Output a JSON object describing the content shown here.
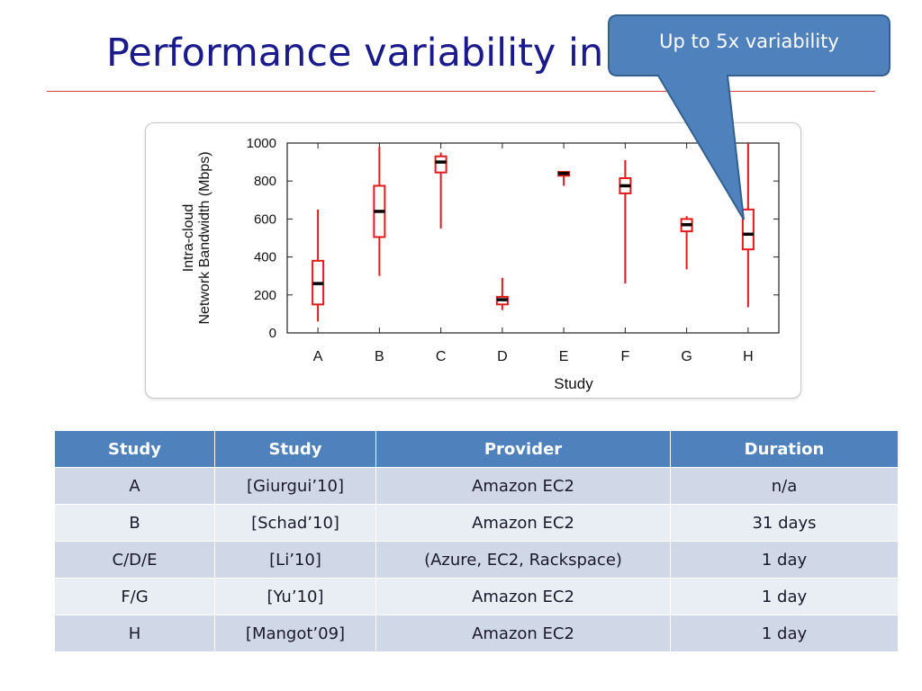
{
  "slide": {
    "title": "Performance variability in the cloud",
    "callout": "Up to 5x variability"
  },
  "colors": {
    "title": "#1a1a8c",
    "rule": "#d94040",
    "box": "#e31a1c",
    "callout_fill": "#4f81bd",
    "table_header": "#4f81bd",
    "row_odd": "#d0d8e8",
    "row_even": "#e9edf4"
  },
  "chart_data": {
    "type": "box",
    "xlabel": "Study",
    "ylabel_lines": [
      "Intra-cloud",
      "Network Bandwidth (Mbps)"
    ],
    "ylim": [
      0,
      1000
    ],
    "yticks": [
      0,
      200,
      400,
      600,
      800,
      1000
    ],
    "categories": [
      "A",
      "B",
      "C",
      "D",
      "E",
      "F",
      "G",
      "H"
    ],
    "boxes": [
      {
        "study": "A",
        "min": 60,
        "q1": 150,
        "median": 260,
        "q3": 380,
        "max": 650
      },
      {
        "study": "B",
        "min": 300,
        "q1": 505,
        "median": 640,
        "q3": 775,
        "max": 980
      },
      {
        "study": "C",
        "min": 550,
        "q1": 845,
        "median": 900,
        "q3": 930,
        "max": 950
      },
      {
        "study": "D",
        "min": 120,
        "q1": 150,
        "median": 175,
        "q3": 190,
        "max": 290
      },
      {
        "study": "E",
        "min": 775,
        "q1": 828,
        "median": 840,
        "q3": 848,
        "max": 850
      },
      {
        "study": "F",
        "min": 260,
        "q1": 735,
        "median": 775,
        "q3": 815,
        "max": 910
      },
      {
        "study": "G",
        "min": 335,
        "q1": 535,
        "median": 570,
        "q3": 600,
        "max": 615
      },
      {
        "study": "H",
        "min": 135,
        "q1": 440,
        "median": 520,
        "q3": 650,
        "max": 1000
      }
    ]
  },
  "table": {
    "headers": [
      "Study",
      "Study",
      "Provider",
      "Duration"
    ],
    "rows": [
      [
        "A",
        "[Giurgui’10]",
        "Amazon EC2",
        "n/a"
      ],
      [
        "B",
        "[Schad’10]",
        "Amazon EC2",
        "31 days"
      ],
      [
        "C/D/E",
        "[Li’10]",
        "(Azure, EC2, Rackspace)",
        "1 day"
      ],
      [
        "F/G",
        "[Yu’10]",
        "Amazon EC2",
        "1 day"
      ],
      [
        "H",
        "[Mangot’09]",
        "Amazon EC2",
        "1 day"
      ]
    ]
  }
}
